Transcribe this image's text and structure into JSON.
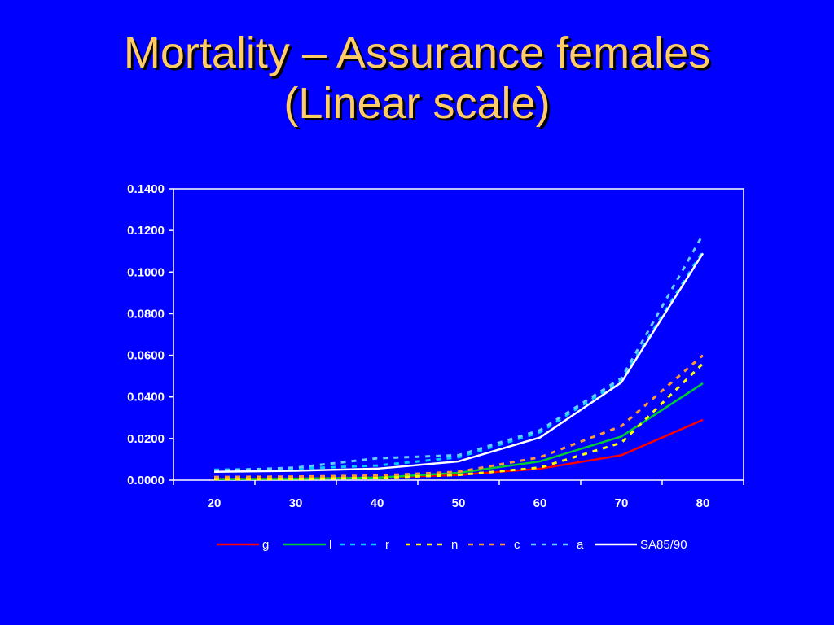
{
  "slide": {
    "title_line1": "Mortality – Assurance females",
    "title_line2": "(Linear scale)"
  },
  "chart_data": {
    "type": "line",
    "x": [
      20,
      30,
      40,
      50,
      60,
      70,
      80
    ],
    "xlim": [
      15,
      85
    ],
    "ylim": [
      0,
      0.14
    ],
    "yticks": [
      0.0,
      0.02,
      0.04,
      0.06,
      0.08,
      0.1,
      0.12,
      0.14
    ],
    "ytick_labels": [
      "0.0000",
      "0.0200",
      "0.0400",
      "0.0600",
      "0.0800",
      "0.1000",
      "0.1200",
      "0.1400"
    ],
    "xtick_labels": [
      "20",
      "30",
      "40",
      "50",
      "60",
      "70",
      "80"
    ],
    "grid": false,
    "legend_position": "bottom",
    "series": [
      {
        "name": "g",
        "color": "#ff0000",
        "dash": "solid",
        "values": [
          0.0006,
          0.0008,
          0.0013,
          0.0025,
          0.0055,
          0.012,
          0.029
        ]
      },
      {
        "name": "l",
        "color": "#00cc33",
        "dash": "solid",
        "values": [
          0.0005,
          0.0007,
          0.0012,
          0.0035,
          0.009,
          0.021,
          0.0465
        ]
      },
      {
        "name": "r",
        "color": "#00ccff",
        "dash": "dashed",
        "values": [
          0.005,
          0.0055,
          0.007,
          0.011,
          0.023,
          0.048,
          0.11
        ]
      },
      {
        "name": "n",
        "color": "#ffff00",
        "dash": "dashed",
        "values": [
          0.0004,
          0.0006,
          0.0011,
          0.0025,
          0.006,
          0.018,
          0.056
        ]
      },
      {
        "name": "c",
        "color": "#ff9933",
        "dash": "dashed",
        "values": [
          0.0015,
          0.0017,
          0.0022,
          0.004,
          0.011,
          0.026,
          0.06
        ]
      },
      {
        "name": "a",
        "color": "#66ccff",
        "dash": "dashed",
        "values": [
          0.0045,
          0.006,
          0.0105,
          0.012,
          0.024,
          0.049,
          0.118
        ]
      },
      {
        "name": "SA85/90",
        "color": "#ffffff",
        "dash": "solid",
        "values": [
          0.004,
          0.0045,
          0.0055,
          0.009,
          0.0205,
          0.047,
          0.109
        ]
      }
    ]
  }
}
